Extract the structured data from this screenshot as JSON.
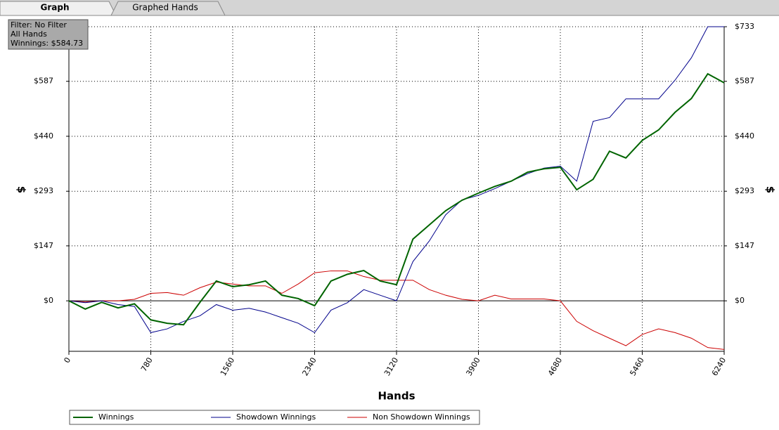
{
  "tabs": [
    "Graph",
    "Graphed Hands"
  ],
  "info": [
    "Filter: No Filter",
    "All Hands",
    "Winnings: $584.73"
  ],
  "chart_data": {
    "type": "line",
    "x_label": "Hands",
    "y_label": "$",
    "xlim": [
      0,
      6240
    ],
    "xticks": [
      0,
      780,
      1560,
      2340,
      3120,
      3900,
      4680,
      5460,
      6240
    ],
    "ylim": [
      -135,
      733
    ],
    "yticks": [
      {
        "value": 0,
        "label": "$0"
      },
      {
        "value": 147,
        "label": "$147"
      },
      {
        "value": 293,
        "label": "$293"
      },
      {
        "value": 440,
        "label": "$440"
      },
      {
        "value": 587,
        "label": "$587"
      },
      {
        "value": 733,
        "label": "$733"
      }
    ],
    "grid": true,
    "x": [
      0,
      156,
      312,
      468,
      624,
      780,
      936,
      1092,
      1248,
      1404,
      1560,
      1716,
      1872,
      2028,
      2184,
      2340,
      2496,
      2652,
      2808,
      2964,
      3120,
      3276,
      3432,
      3588,
      3744,
      3900,
      4056,
      4212,
      4368,
      4524,
      4680,
      4836,
      4992,
      5148,
      5304,
      5460,
      5616,
      5772,
      5928,
      6084,
      6240
    ],
    "series": [
      {
        "name": "Winnings",
        "color": "#006400",
        "values": [
          0,
          -22,
          -4,
          -19,
          -8,
          -51,
          -60,
          -64,
          -4,
          53,
          38,
          43,
          53,
          15,
          6,
          -13,
          53,
          71,
          81,
          53,
          43,
          165,
          203,
          241,
          269,
          288,
          306,
          320,
          344,
          353,
          357,
          297,
          325,
          400,
          382,
          429,
          457,
          504,
          541,
          607,
          583
        ]
      },
      {
        "name": "Showdown Winnings",
        "color": "#00008b",
        "values": [
          0,
          -5,
          0,
          -10,
          -15,
          -85,
          -75,
          -55,
          -40,
          -10,
          -25,
          -20,
          -30,
          -45,
          -60,
          -85,
          -25,
          -5,
          30,
          15,
          0,
          105,
          160,
          230,
          270,
          282,
          300,
          320,
          340,
          355,
          360,
          320,
          480,
          490,
          540,
          540,
          540,
          590,
          650,
          733,
          733
        ]
      },
      {
        "name": "Non Showdown Winnings",
        "color": "#cc0000",
        "values": [
          0,
          -3,
          0,
          0,
          4,
          20,
          22,
          15,
          35,
          50,
          45,
          40,
          40,
          20,
          45,
          75,
          80,
          80,
          65,
          55,
          55,
          55,
          30,
          15,
          4,
          0,
          15,
          5,
          5,
          5,
          0,
          -55,
          -80,
          -100,
          -120,
          -90,
          -75,
          -85,
          -100,
          -125,
          -130
        ]
      }
    ]
  }
}
